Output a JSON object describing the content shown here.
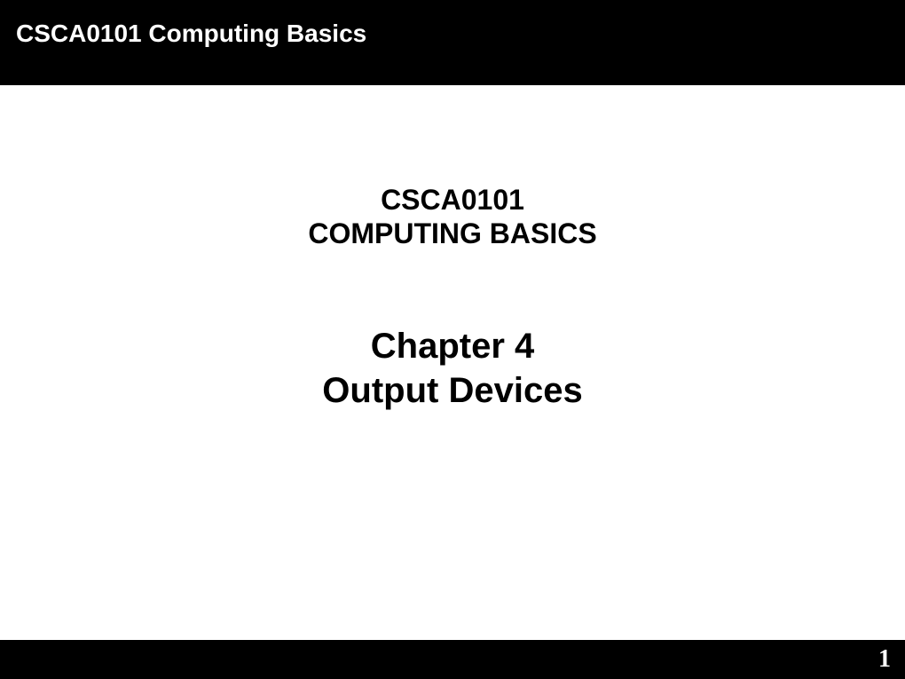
{
  "header": {
    "title": "CSCA0101 Computing Basics"
  },
  "content": {
    "course_code": "CSCA0101",
    "course_name": "COMPUTING BASICS",
    "chapter_number": "Chapter 4",
    "chapter_title": "Output Devices"
  },
  "footer": {
    "page_number": "1"
  },
  "colors": {
    "header_bg": "#000000",
    "header_text": "#ffffff",
    "body_bg": "#ffffff",
    "body_text": "#000000",
    "footer_bg": "#000000",
    "footer_text": "#ffffff"
  },
  "typography": {
    "header_fontsize": 28,
    "course_fontsize": 32,
    "chapter_fontsize": 40,
    "page_number_fontsize": 28,
    "font_family": "Arial",
    "font_weight": "bold"
  }
}
